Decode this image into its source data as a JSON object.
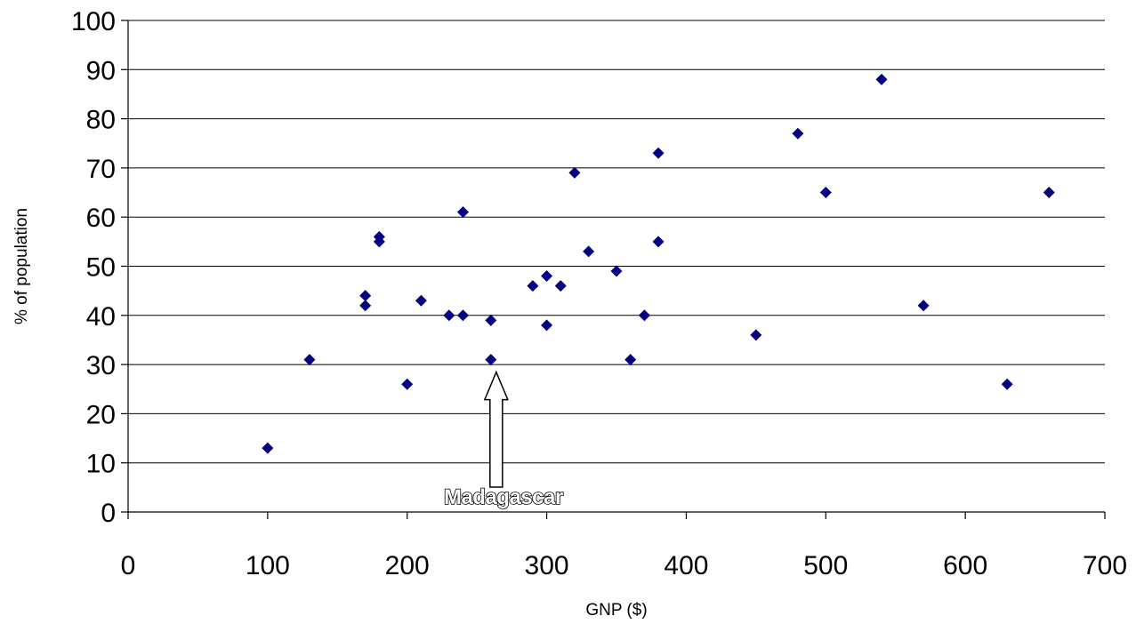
{
  "chart_data": {
    "type": "scatter",
    "title": "",
    "xlabel": "GNP ($)",
    "ylabel": "% of population",
    "xlim": [
      0,
      700
    ],
    "ylim": [
      0,
      100
    ],
    "x_ticks": [
      0,
      100,
      200,
      300,
      400,
      500,
      600,
      700
    ],
    "y_ticks": [
      0,
      10,
      20,
      30,
      40,
      50,
      60,
      70,
      80,
      90,
      100
    ],
    "grid": "horizontal",
    "marker": "diamond",
    "color": "#000080",
    "points": [
      {
        "x": 100,
        "y": 13
      },
      {
        "x": 130,
        "y": 31
      },
      {
        "x": 170,
        "y": 44
      },
      {
        "x": 170,
        "y": 42
      },
      {
        "x": 180,
        "y": 56
      },
      {
        "x": 180,
        "y": 55
      },
      {
        "x": 200,
        "y": 26
      },
      {
        "x": 210,
        "y": 43
      },
      {
        "x": 230,
        "y": 40
      },
      {
        "x": 240,
        "y": 40
      },
      {
        "x": 240,
        "y": 61
      },
      {
        "x": 260,
        "y": 39
      },
      {
        "x": 260,
        "y": 31
      },
      {
        "x": 290,
        "y": 46
      },
      {
        "x": 300,
        "y": 48
      },
      {
        "x": 300,
        "y": 38
      },
      {
        "x": 310,
        "y": 46
      },
      {
        "x": 320,
        "y": 69
      },
      {
        "x": 330,
        "y": 53
      },
      {
        "x": 350,
        "y": 49
      },
      {
        "x": 360,
        "y": 31
      },
      {
        "x": 370,
        "y": 40
      },
      {
        "x": 380,
        "y": 73
      },
      {
        "x": 380,
        "y": 55
      },
      {
        "x": 450,
        "y": 36
      },
      {
        "x": 480,
        "y": 77
      },
      {
        "x": 500,
        "y": 65
      },
      {
        "x": 540,
        "y": 88
      },
      {
        "x": 570,
        "y": 42
      },
      {
        "x": 630,
        "y": 26
      },
      {
        "x": 660,
        "y": 65
      }
    ],
    "annotation": {
      "text": "Madagascar",
      "x": 260,
      "y": 31
    }
  }
}
